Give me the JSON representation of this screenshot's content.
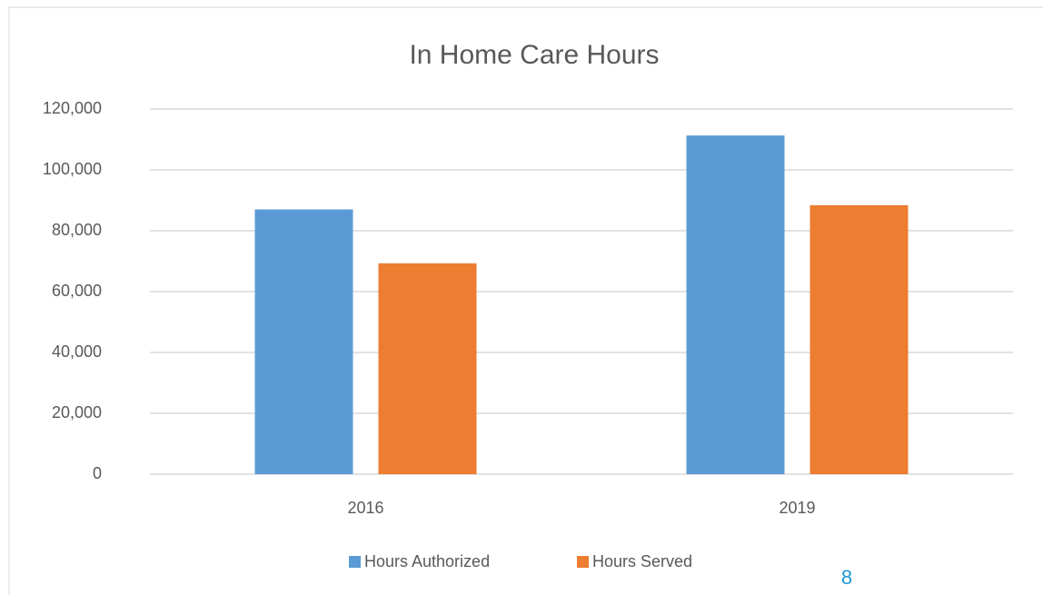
{
  "chart_data": {
    "type": "bar",
    "title": "In Home Care Hours",
    "categories": [
      "2016",
      "2019"
    ],
    "series": [
      {
        "name": "Hours Authorized",
        "color": "#5b9bd5",
        "values": [
          87000,
          111300
        ]
      },
      {
        "name": "Hours Served",
        "color": "#ed7d31",
        "values": [
          69300,
          88400
        ]
      }
    ],
    "ylim": [
      0,
      120000
    ],
    "yticks": [
      0,
      {
        "value": 20000,
        "label": "20,000"
      },
      {
        "value": 40000,
        "label": "40,000"
      },
      {
        "value": 60000,
        "label": "60,000"
      },
      {
        "value": 80000,
        "label": "80,000"
      },
      {
        "value": 100000,
        "label": "100,000"
      },
      {
        "value": 120000,
        "label": "120,000"
      }
    ],
    "grid": true,
    "legend": "bottom"
  },
  "page_number": "8"
}
